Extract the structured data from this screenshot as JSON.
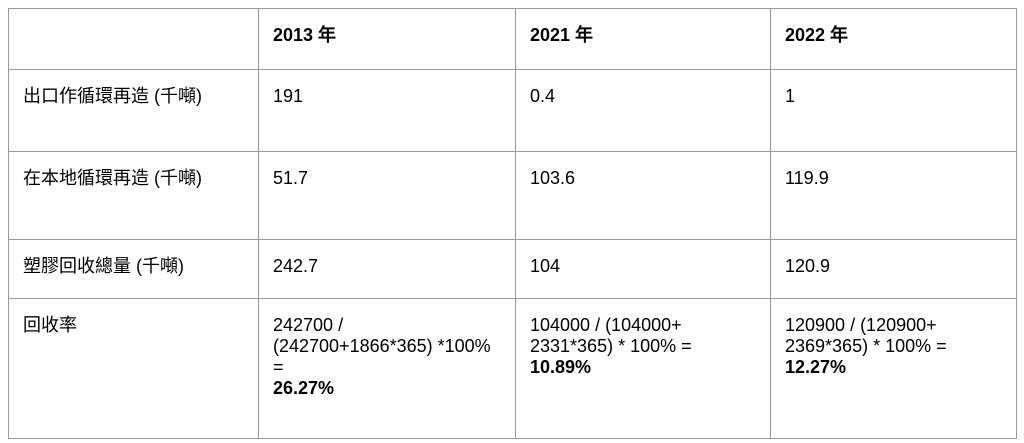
{
  "table": {
    "columns": [
      "2013 年",
      "2021 年",
      "2022 年"
    ],
    "rows": [
      {
        "label": "出口作循環再造 (千噸)",
        "values": [
          "191",
          "0.4",
          "1"
        ]
      },
      {
        "label": "在本地循環再造 (千噸)",
        "values": [
          "51.7",
          "103.6",
          "119.9"
        ]
      },
      {
        "label": "塑膠回收總量 (千噸)",
        "values": [
          "242.7",
          "104",
          "120.9"
        ]
      },
      {
        "label": "回收率",
        "values": [
          {
            "formula": "242700 / (242700+1866*365) *100% =",
            "result": "26.27%"
          },
          {
            "formula": "104000 / (104000+ 2331*365) * 100% =",
            "result": "10.89%"
          },
          {
            "formula": "120900 / (120900+ 2369*365) * 100% =",
            "result": "12.27%"
          }
        ]
      }
    ]
  }
}
